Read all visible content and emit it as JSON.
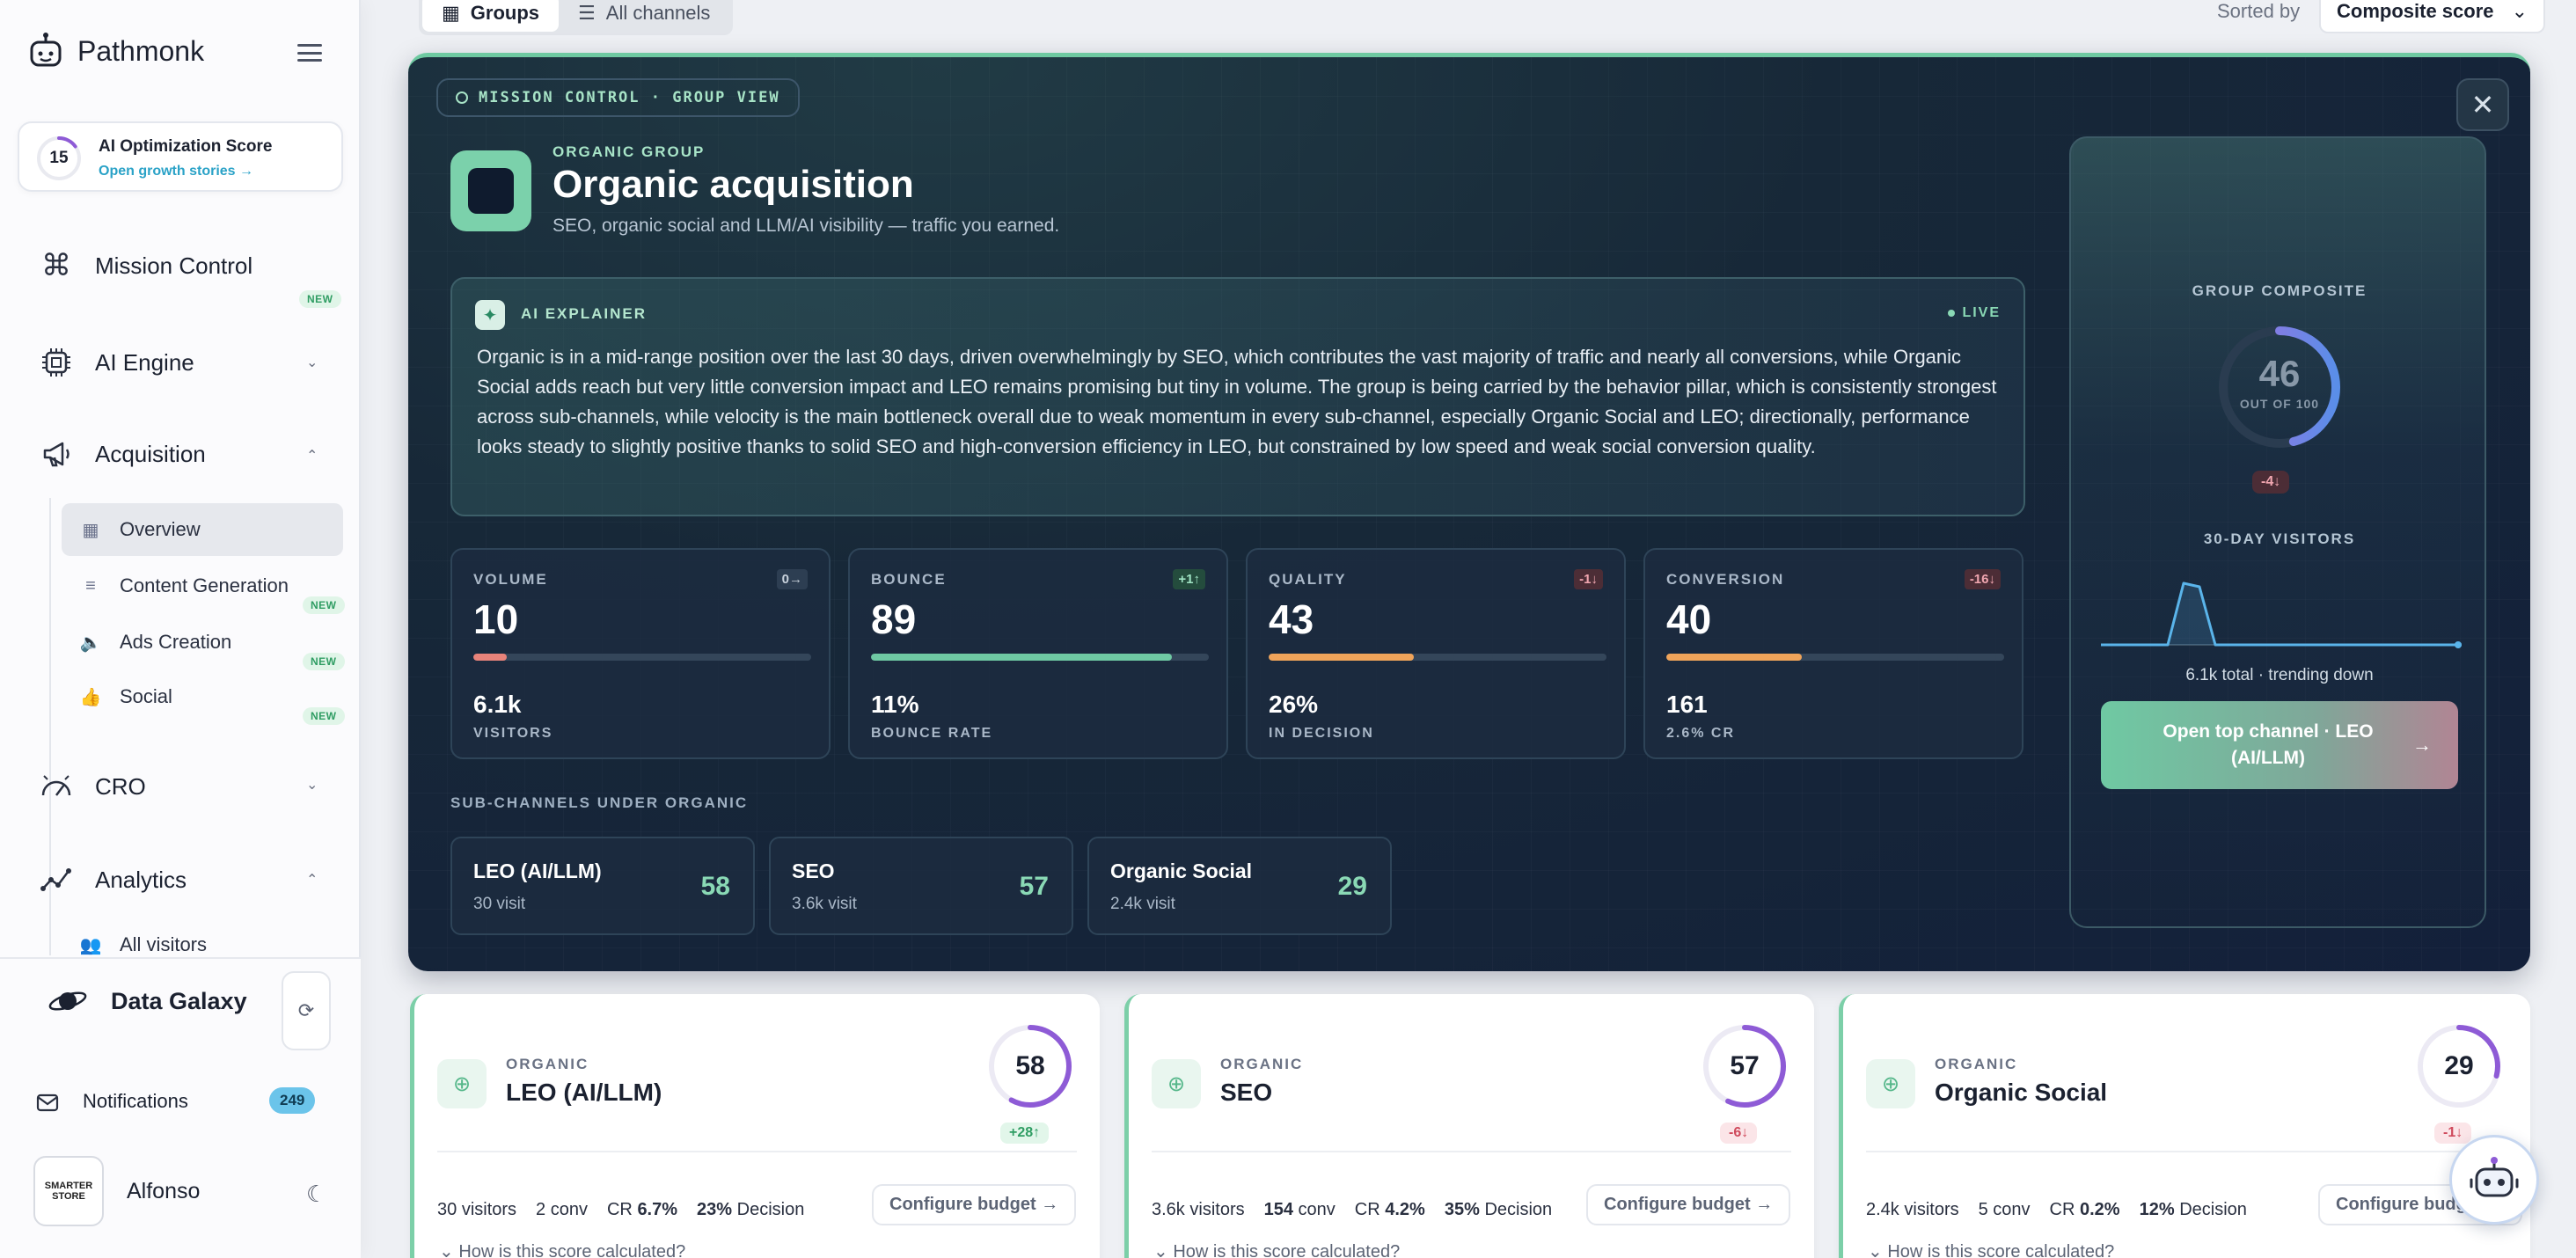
{
  "app": {
    "brand": "Pathmonk"
  },
  "sidebar": {
    "score": {
      "value": "15",
      "title": "AI Optimization Score",
      "link": "Open growth stories →"
    },
    "nav": [
      {
        "label": "Mission Control",
        "badge": "NEW"
      },
      {
        "label": "AI Engine"
      },
      {
        "label": "Acquisition"
      },
      {
        "label": "CRO"
      },
      {
        "label": "Analytics"
      }
    ],
    "acquisition_items": [
      {
        "label": "Overview"
      },
      {
        "label": "Content Generation",
        "badge": "NEW"
      },
      {
        "label": "Ads Creation",
        "badge": "NEW"
      },
      {
        "label": "Social",
        "badge": "NEW"
      }
    ],
    "analytics_items": [
      {
        "label": "All visitors"
      }
    ],
    "data_galaxy": "Data Galaxy",
    "notifications": {
      "label": "Notifications",
      "count": "249"
    },
    "user": {
      "name": "Alfonso",
      "avatar_line1": "SMARTER",
      "avatar_line2": "STORE"
    }
  },
  "topbar": {
    "tabs": [
      {
        "label": "Groups"
      },
      {
        "label": "All channels"
      }
    ],
    "sorted_label": "Sorted by",
    "sort_value": "Composite score"
  },
  "panel": {
    "chip": "MISSION CONTROL · GROUP VIEW",
    "kicker": "ORGANIC GROUP",
    "title": "Organic acquisition",
    "subtitle": "SEO, organic social and LLM/AI visibility — traffic you earned.",
    "explainer": {
      "label": "AI EXPLAINER",
      "live": "LIVE",
      "text": "Organic is in a mid-range position over the last 30 days, driven overwhelmingly by SEO, which contributes the vast majority of traffic and nearly all conversions, while Organic Social adds reach but very little conversion impact and LEO remains promising but tiny in volume. The group is being carried by the behavior pillar, which is consistently strongest across sub-channels, while velocity is the main bottleneck overall due to weak momentum in every sub-channel, especially Organic Social and LEO; directionally, performance looks steady to slightly positive thanks to solid SEO and high-conversion efficiency in LEO, but constrained by low speed and weak social conversion quality."
    },
    "metrics": [
      {
        "label": "VOLUME",
        "delta": "0→",
        "value": "10",
        "sub": "6.1k",
        "sublabel": "VISITORS",
        "bar_pct": 10,
        "color": "#e8837a"
      },
      {
        "label": "BOUNCE",
        "delta": "+1↑",
        "value": "89",
        "sub": "11%",
        "sublabel": "BOUNCE RATE",
        "bar_pct": 89,
        "color": "#6fc9a3"
      },
      {
        "label": "QUALITY",
        "delta": "-1↓",
        "value": "43",
        "sub": "26%",
        "sublabel": "IN DECISION",
        "bar_pct": 43,
        "color": "#f0a45a"
      },
      {
        "label": "CONVERSION",
        "delta": "-16↓",
        "value": "40",
        "sub": "161",
        "sublabel": "2.6% CR",
        "bar_pct": 40,
        "color": "#f0a45a"
      }
    ],
    "subchannels_title": "SUB-CHANNELS UNDER ORGANIC",
    "subchannels": [
      {
        "name": "LEO (AI/LLM)",
        "visits": "30 visit",
        "score": "58"
      },
      {
        "name": "SEO",
        "visits": "3.6k visit",
        "score": "57"
      },
      {
        "name": "Organic Social",
        "visits": "2.4k visit",
        "score": "29"
      }
    ],
    "composite": {
      "label": "GROUP COMPOSITE",
      "value": "46",
      "out_of": "OUT OF 100",
      "delta": "-4↓",
      "score_pct": 46,
      "visitors_label": "30-DAY VISITORS",
      "caption": "6.1k total · trending down",
      "cta": "Open top channel · LEO (AI/LLM)",
      "cta_arrow": "→"
    }
  },
  "cards": [
    {
      "kicker": "ORGANIC",
      "title": "LEO (AI/LLM)",
      "score": "58",
      "score_pct": 58,
      "delta": "+28↑",
      "trend": "up",
      "visitors": "30",
      "conv": "2",
      "cr": "6.7%",
      "decision": "23%"
    },
    {
      "kicker": "ORGANIC",
      "title": "SEO",
      "score": "57",
      "score_pct": 57,
      "delta": "-6↓",
      "trend": "down",
      "visitors": "3.6k",
      "conv": "154",
      "cr": "4.2%",
      "decision": "35%"
    },
    {
      "kicker": "ORGANIC",
      "title": "Organic Social",
      "score": "29",
      "score_pct": 29,
      "delta": "-1↓",
      "trend": "down",
      "visitors": "2.4k",
      "conv": "5",
      "cr": "0.2%",
      "decision": "12%"
    }
  ],
  "card_labels": {
    "visitors": "visitors",
    "conv": "conv",
    "cr": "CR",
    "decision": "Decision",
    "budget": "Configure budget →",
    "how": "How is this score calculated?"
  },
  "colors": {
    "accent": "#6fc9a3",
    "ring": "#8e5bd6",
    "panel": "#172838"
  }
}
